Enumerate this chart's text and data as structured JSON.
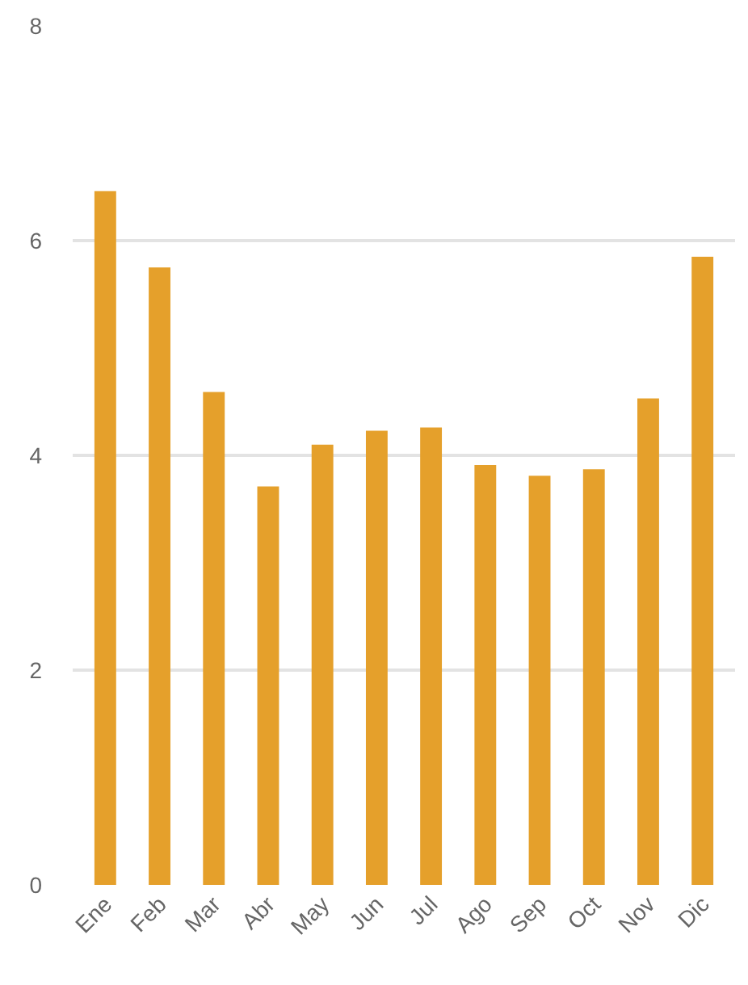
{
  "chart_data": {
    "type": "bar",
    "categories": [
      "Ene",
      "Feb",
      "Mar",
      "Abr",
      "May",
      "Jun",
      "Jul",
      "Ago",
      "Sep",
      "Oct",
      "Nov",
      "Dic"
    ],
    "values": [
      6.46,
      5.75,
      4.59,
      3.71,
      4.1,
      4.23,
      4.26,
      3.91,
      3.81,
      3.87,
      4.53,
      5.85
    ],
    "color": "#e5a02b",
    "ylim": [
      0,
      8
    ],
    "yticks": [
      0,
      2,
      4,
      6,
      8
    ],
    "grid": "y",
    "legend": false
  }
}
